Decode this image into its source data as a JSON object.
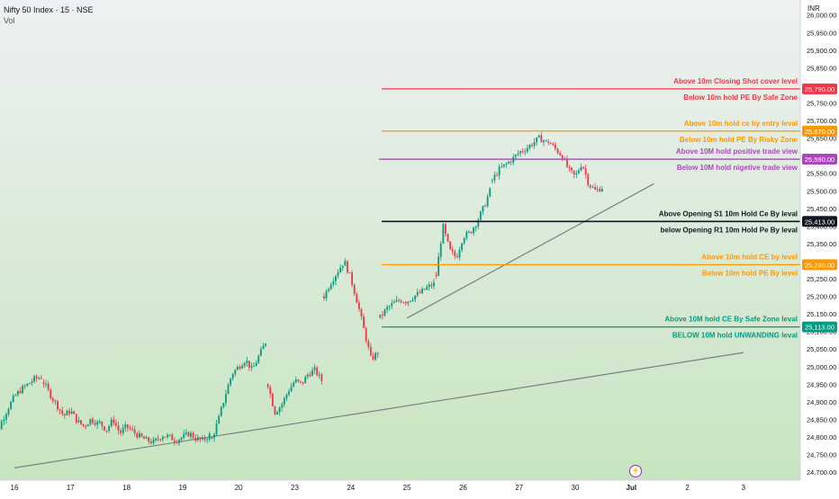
{
  "header": {
    "symbol": "Nifty 50 Index · 15 · NSE",
    "volume_label": "Vol"
  },
  "currency": "INR",
  "colors": {
    "bg_top": "#eef0f2",
    "bg_bottom": "#c7e5c0",
    "candle_up": "#089981",
    "candle_down": "#f23645",
    "trendline": "#7b7f85"
  },
  "event_icon": "flash-icon",
  "chart_data": {
    "type": "candlestick",
    "ylim": [
      24690,
      26030
    ],
    "y_ticks": [
      "24,700.00",
      "24,750.00",
      "24,800.00",
      "24,850.00",
      "24,900.00",
      "24,950.00",
      "25,000.00",
      "25,050.00",
      "25,100.00",
      "25,150.00",
      "25,200.00",
      "25,250.00",
      "25,300.00",
      "25,350.00",
      "25,400.00",
      "25,450.00",
      "25,500.00",
      "25,550.00",
      "25,600.00",
      "25,650.00",
      "25,700.00",
      "25,750.00",
      "25,800.00",
      "25,850.00",
      "25,900.00",
      "25,950.00",
      "26,000.00"
    ],
    "y_tick_values": [
      24700,
      24750,
      24800,
      24850,
      24900,
      24950,
      25000,
      25050,
      25100,
      25150,
      25200,
      25250,
      25300,
      25350,
      25400,
      25450,
      25500,
      25550,
      25600,
      25650,
      25700,
      25750,
      25800,
      25850,
      25900,
      25950,
      26000
    ],
    "x_ticks": [
      "16",
      "17",
      "18",
      "19",
      "20",
      "23",
      "24",
      "25",
      "26",
      "27",
      "30",
      "Jul",
      "2",
      "3"
    ],
    "levels": [
      {
        "value": 25790,
        "price_label": "25,790.00",
        "color": "#f23645",
        "start_session": 6.55,
        "texts": [
          "Above 10m Closing Shot cover level",
          "Below 10m hold PE By Safe Zone"
        ]
      },
      {
        "value": 25670,
        "price_label": "25,670.00",
        "color": "#ff9800",
        "start_session": 6.55,
        "texts": [
          "Above 10m hold ce by entry leval",
          "Below 10m hold PE By Risky Zone"
        ]
      },
      {
        "value": 25590,
        "price_label": "25,590.00",
        "color": "#ab47bc",
        "start_session": 6.5,
        "texts": [
          "Above 10M hold positive trade view",
          "Below 10M hold nigetive trade view"
        ]
      },
      {
        "value": 25413,
        "price_label": "25,413.00",
        "color": "#131722",
        "start_session": 6.55,
        "texts": [
          "Above Opening S1 10m Hold Ce By leval",
          "below Opening R1 10m Hold Pe By leval"
        ]
      },
      {
        "value": 25290,
        "price_label": "25,290.00",
        "color": "#ff9800",
        "start_session": 6.55,
        "texts": [
          "Above 10m hold CE by level",
          "Below 10m hold PE By level"
        ]
      },
      {
        "value": 25113,
        "price_label": "25,113.00",
        "color": "#089981",
        "start_session": 6.55,
        "texts": [
          "Above 10M hold CE By Safe Zone leval",
          "BELOW 10M hold UNWANDING leval"
        ]
      }
    ],
    "trendlines": [
      {
        "p1": [
          0.0,
          24712
        ],
        "p2": [
          13.0,
          25040
        ]
      },
      {
        "p1": [
          7.0,
          25138
        ],
        "p2": [
          11.4,
          25520
        ]
      }
    ],
    "sessions": [
      {
        "label": "16",
        "open": 24720,
        "path": [
          24720,
          24790,
          24840,
          24880,
          24915,
          24935,
          24950,
          24965,
          24970
        ]
      },
      {
        "label": "17",
        "open": 24955,
        "path": [
          24955,
          24920,
          24890,
          24860,
          24875,
          24845,
          24830,
          24850,
          24840
        ]
      },
      {
        "label": "18",
        "open": 24840,
        "path": [
          24840,
          24820,
          24850,
          24810,
          24830,
          24815,
          24800,
          24790,
          24785
        ]
      },
      {
        "label": "19",
        "open": 24790,
        "path": [
          24790,
          24805,
          24800,
          24790,
          24800,
          24810,
          24795,
          24790,
          24805
        ]
      },
      {
        "label": "20",
        "open": 24795,
        "path": [
          24795,
          24850,
          24920,
          24980,
          25000,
          25020,
          24990,
          25030,
          25070
        ]
      },
      {
        "label": "23",
        "open": 24950,
        "path": [
          24950,
          24870,
          24890,
          24930,
          24960,
          24950,
          24980,
          24990,
          24960
        ]
      },
      {
        "label": "24",
        "open": 25200,
        "path": [
          25200,
          25240,
          25270,
          25300,
          25250,
          25180,
          25100,
          25020,
          25040
        ]
      },
      {
        "label": "25",
        "open": 25140,
        "path": [
          25140,
          25165,
          25180,
          25190,
          25185,
          25200,
          25210,
          25225,
          25235
        ]
      },
      {
        "label": "26",
        "open": 25260,
        "path": [
          25260,
          25400,
          25330,
          25310,
          25370,
          25380,
          25410,
          25450,
          25500
        ]
      },
      {
        "label": "27",
        "open": 25530,
        "path": [
          25530,
          25560,
          25575,
          25590,
          25610,
          25620,
          25635,
          25650,
          25640
        ]
      },
      {
        "label": "30",
        "open": 25640,
        "path": [
          25640,
          25620,
          25600,
          25560,
          25540,
          25580,
          25520,
          25500,
          25510
        ]
      }
    ]
  }
}
